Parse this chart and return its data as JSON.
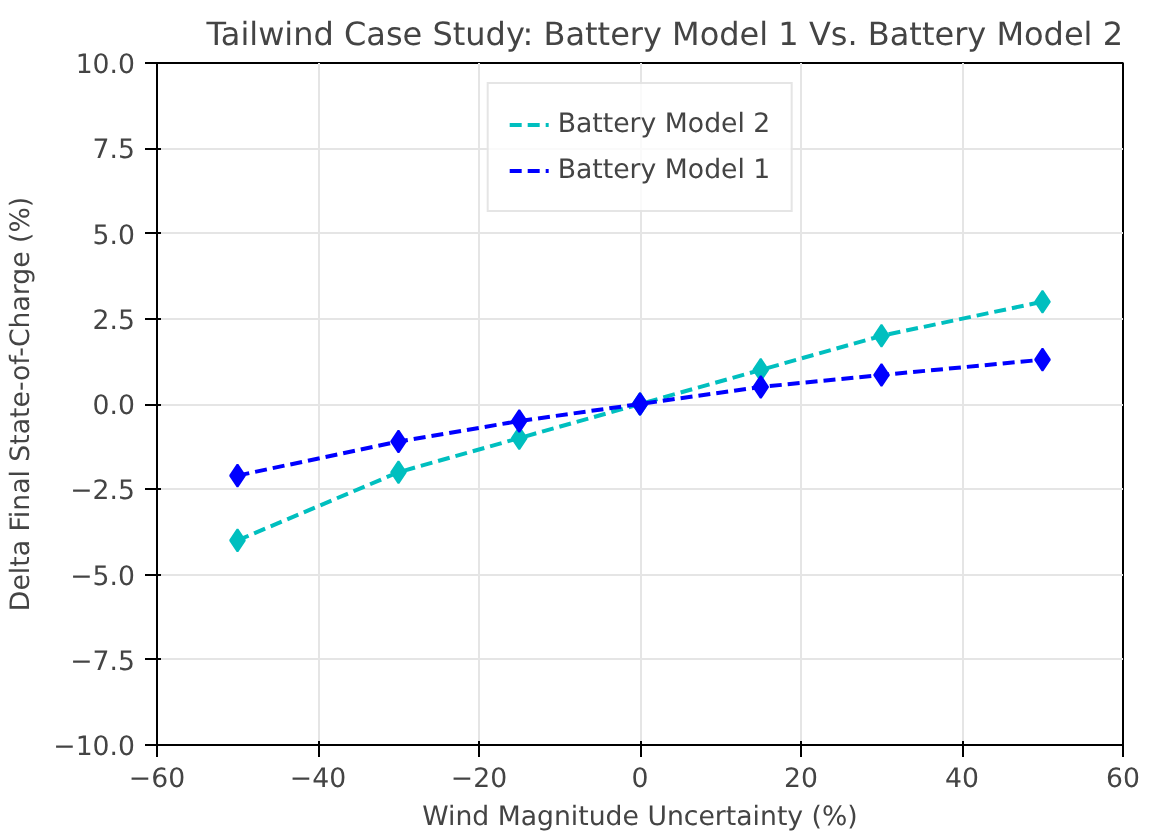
{
  "chart_data": {
    "type": "line",
    "title": "Tailwind Case Study: Battery Model 1 Vs. Battery Model 2",
    "xlabel": "Wind Magnitude Uncertainty (%)",
    "ylabel": "Delta Final State-of-Charge (%)",
    "x": [
      -50,
      -30,
      -15,
      0,
      15,
      30,
      50
    ],
    "series": [
      {
        "name": "Battery Model 2",
        "color": "#00bfbf",
        "values": [
          -4.0,
          -2.0,
          -1.0,
          0,
          1.0,
          2.0,
          3.0
        ]
      },
      {
        "name": "Battery Model 1",
        "color": "#0000ff",
        "values": [
          -2.1,
          -1.1,
          -0.5,
          0,
          0.5,
          0.85,
          1.3
        ]
      }
    ],
    "xlim": [
      -60,
      60
    ],
    "ylim": [
      -10,
      10
    ],
    "xticks": [
      {
        "value": -60,
        "label": "−60"
      },
      {
        "value": -40,
        "label": "−40"
      },
      {
        "value": -20,
        "label": "−20"
      },
      0,
      20,
      40,
      60
    ],
    "yticks": [
      {
        "value": -10,
        "label": "−10.0"
      },
      {
        "value": -7.5,
        "label": "−7.5"
      },
      {
        "value": -5,
        "label": "−5.0"
      },
      {
        "value": -2.5,
        "label": "−2.5"
      },
      {
        "value": 0,
        "label": "0.0"
      },
      {
        "value": 2.5,
        "label": "2.5"
      },
      {
        "value": 5,
        "label": "5.0"
      },
      {
        "value": 7.5,
        "label": "7.5"
      },
      {
        "value": 10,
        "label": "10.0"
      }
    ],
    "grid": true,
    "legend": "top",
    "marker": "diamond",
    "line_style": "dashed"
  }
}
